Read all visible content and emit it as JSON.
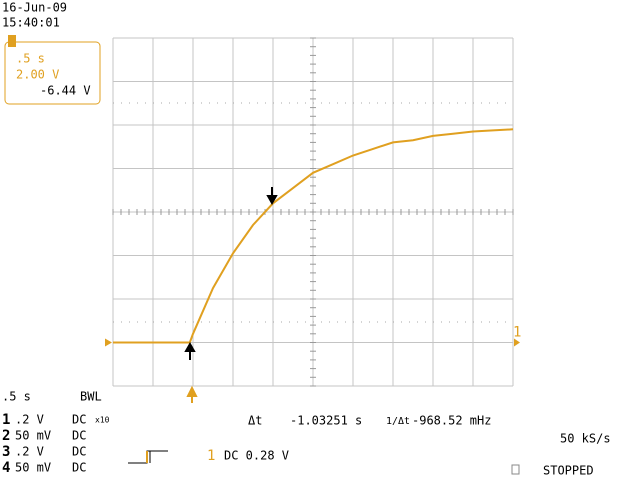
{
  "screen": {
    "date": "16-Jun-09",
    "time": "15:40:01",
    "box": {
      "timebase": ".5 s",
      "trigger_level": "2.00 V",
      "offset": "-6.44 V"
    },
    "timebase": ".5  s",
    "bwl": "BWL",
    "channels": [
      {
        "number": "1",
        "scale": ".2  V",
        "coupling": "DC",
        "probe": "x10"
      },
      {
        "number": "2",
        "scale": "50 mV",
        "coupling": "DC"
      },
      {
        "number": "3",
        "scale": ".2  V",
        "coupling": "DC"
      },
      {
        "number": "4",
        "scale": "50 mV",
        "coupling": "DC"
      }
    ],
    "delta_t_label": "Δt",
    "delta_t": "-1.03251 s",
    "inv_delta_t_label": "1/Δt",
    "inv_delta_t": "-968.52 mHz",
    "sample_rate": "50 kS/s",
    "trigger_channel": "1",
    "trigger_info": "DC 0.28 V",
    "status": "STOPPED",
    "channel_marker": "1"
  },
  "chart_data": {
    "type": "line",
    "color": "#e0a020",
    "x": [
      0,
      0.25,
      0.5,
      0.75,
      0.96,
      1.0,
      1.25,
      1.5,
      1.75,
      2.0,
      2.25,
      2.5,
      2.75,
      3.0,
      3.25,
      3.5,
      3.75,
      4.0,
      4.25,
      4.5,
      4.75,
      5.0
    ],
    "values": [
      0,
      0,
      0,
      0,
      0,
      0.4,
      2.5,
      4.1,
      5.4,
      6.4,
      7.1,
      7.8,
      8.2,
      8.6,
      8.9,
      9.2,
      9.3,
      9.5,
      9.6,
      9.7,
      9.75,
      9.8
    ],
    "xlim": [
      0,
      5
    ],
    "ylim": [
      -2,
      14
    ],
    "xticks": [
      0,
      0.5,
      1,
      1.5,
      2,
      2.5,
      3,
      3.5,
      4,
      4.5,
      5
    ],
    "yticks": [
      -2,
      0,
      2,
      4,
      6,
      8,
      10,
      12,
      14
    ],
    "grid": true
  }
}
